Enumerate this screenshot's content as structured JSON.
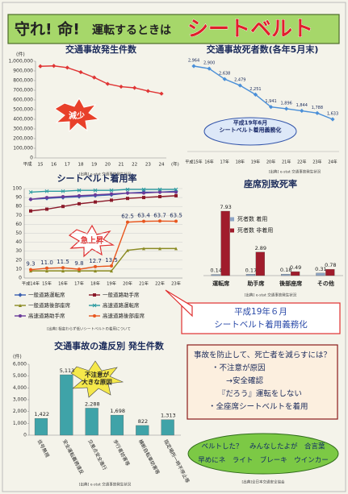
{
  "header": {
    "title_1": "守れ! 命!",
    "title_2": "運転するときは",
    "title_3": "シートベルト"
  },
  "chart_data": [
    {
      "type": "line",
      "title": "交通事故発生件数",
      "ylabel": "(件)",
      "xlabel": "(年)",
      "x_era": "平成",
      "categories": [
        "15",
        "16",
        "17",
        "18",
        "19",
        "20",
        "21",
        "22",
        "23",
        "24"
      ],
      "values": [
        948000,
        952000,
        934000,
        887000,
        832000,
        766000,
        737000,
        725000,
        692000,
        665000
      ],
      "color": "#e03535",
      "ylim": [
        0,
        1000000
      ],
      "yticks": [
        0,
        {
          "value": 100000,
          "label": "100,000"
        },
        {
          "value": 200000,
          "label": "200,000"
        },
        {
          "value": 300000,
          "label": "300,000"
        },
        {
          "value": 400000,
          "label": "400,000"
        },
        {
          "value": 500000,
          "label": "500,000"
        },
        {
          "value": 600000,
          "label": "600,000"
        },
        {
          "value": 700000,
          "label": "700,000"
        },
        {
          "value": 800000,
          "label": "800,000"
        },
        {
          "value": 900000,
          "label": "900,000"
        },
        {
          "value": 1000000,
          "label": "1,000,000"
        }
      ],
      "grid": false,
      "annotation": [
        "減少"
      ],
      "source": "[出典] e-stat 交通事故発生状況"
    },
    {
      "type": "line",
      "title": "交通事故死者数(各年5月末)",
      "categories": [
        "平成15年",
        "16年",
        "17年",
        "18年",
        "19年",
        "20年",
        "21年",
        "22年",
        "23年",
        "24年"
      ],
      "values": [
        2964,
        2900,
        2638,
        2479,
        2251,
        1941,
        1896,
        1844,
        1788,
        1633
      ],
      "value_labels": [
        "2,964",
        "2,900",
        "2,638",
        "2,479",
        "2,251",
        "1,941",
        "1,896",
        "1,844",
        "1,788",
        "1,633"
      ],
      "color": "#4a8fd8",
      "annotation": [
        "平成19年6月",
        "シートベルト着用義務化"
      ],
      "source": "[出典] e-stat 交通事故発生状況"
    },
    {
      "type": "line",
      "title": "シートベルト着用率",
      "categories": [
        "平成14年",
        "15年",
        "16年",
        "17年",
        "18年",
        "19年",
        "20年",
        "21年",
        "22年",
        "23年"
      ],
      "ylim": [
        0,
        100
      ],
      "yticks": [
        0,
        10,
        20,
        30,
        40,
        50,
        60,
        70,
        80,
        90,
        100
      ],
      "grid": true,
      "series": [
        {
          "name": "一般道路運転席",
          "color": "#3a5fb0",
          "values": [
            88,
            89,
            90,
            91,
            92,
            93,
            95,
            96,
            96,
            97
          ]
        },
        {
          "name": "一般道路助手席",
          "color": "#8b1a2a",
          "values": [
            75,
            77,
            80,
            83,
            85,
            87,
            89,
            90,
            91,
            92
          ]
        },
        {
          "name": "一般道路後部座席",
          "color": "#8a8a22",
          "values": [
            8,
            8,
            8,
            8,
            8,
            8,
            31,
            33,
            33,
            33
          ]
        },
        {
          "name": "高速道路運転席",
          "color": "#2a9aa0",
          "values": [
            96,
            97,
            97,
            98,
            98,
            98,
            99,
            99,
            99,
            99
          ]
        },
        {
          "name": "高速道路助手席",
          "color": "#6a3a9a",
          "values": [
            88,
            90,
            91,
            92,
            93,
            94,
            95,
            95,
            96,
            96
          ]
        },
        {
          "name": "高速道路後部座席",
          "color": "#e8561e",
          "values": [
            9.3,
            11.0,
            11.5,
            9.8,
            12.7,
            13.5,
            62.5,
            63.4,
            63.7,
            63.5
          ],
          "value_labels": [
            "9.3",
            "11.0",
            "11.5",
            "9.8",
            "12.7",
            "13.5",
            "62.5",
            "63.4",
            "63.7",
            "63.5"
          ]
        }
      ],
      "annotation": [
        "急上昇"
      ],
      "source": "[出典] 相変わらず低いシートベルトの着用について"
    },
    {
      "type": "bar",
      "title": "座席別致死率",
      "categories": [
        "運転席",
        "助手席",
        "後部座席",
        "その他"
      ],
      "series": [
        {
          "name": "死者数 着用",
          "color": "#8fa6c6",
          "values": [
            0.14,
            0.17,
            0.18,
            0.31
          ]
        },
        {
          "name": "死者数 非着用",
          "color": "#a01c2c",
          "values": [
            7.93,
            2.89,
            0.49,
            0.78
          ]
        }
      ],
      "source": "[出典] e-stat 交通事故発生状況"
    },
    {
      "type": "bar",
      "title": "交通事故の違反別 発生件数",
      "ylabel": "(件)",
      "categories": [
        "信号無視",
        "安全運転義務違反",
        "交差点安全進行",
        "歩行者妨害等",
        "横断自転車妨害等",
        "指定場所一時不停止等"
      ],
      "values": [
        1422,
        5113,
        2288,
        1698,
        822,
        1313
      ],
      "value_labels": [
        "1,422",
        "5,113",
        "2,288",
        "1,698",
        "822",
        "1,313"
      ],
      "color": "#3fa3a8",
      "ylim": [
        0,
        6000
      ],
      "yticks": [
        0,
        {
          "value": 1000,
          "label": "1,000"
        },
        {
          "value": 2000,
          "label": "2,000"
        },
        {
          "value": 3000,
          "label": "3,000"
        },
        {
          "value": 4000,
          "label": "4,000"
        },
        {
          "value": 5000,
          "label": "5,000"
        },
        {
          "value": 6000,
          "label": "6,000"
        }
      ],
      "grid": false,
      "annotation": [
        "不注意が",
        "大きな原因"
      ],
      "source": "[出典] e-stat 交通事故発生状況"
    }
  ],
  "notice": [
    "平成19年６月",
    "シートベルト着用義務化"
  ],
  "prevention": {
    "title": "事故を防止して、死亡者を減らすには？",
    "items": [
      "・不注意が原因",
      "→安全確認",
      "『だろう』運転をしない",
      "・全座席シートベルトを着用"
    ]
  },
  "slogan": {
    "lines": [
      "ベルトした？　みんなしたよが　合言葉",
      "早めにネ　ライト　ブレーキ　ウインカー"
    ],
    "source": "[出典]全日本交通安全協会"
  }
}
